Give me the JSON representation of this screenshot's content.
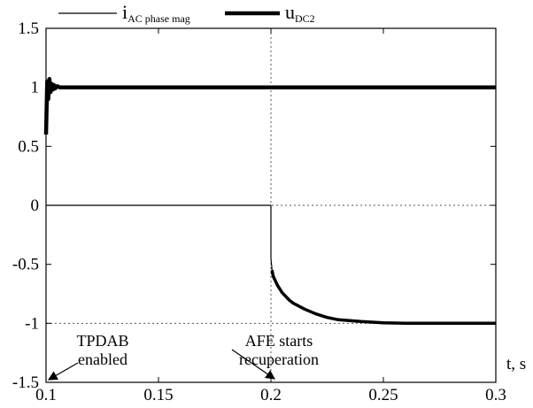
{
  "chart_data": {
    "type": "line",
    "xlim": [
      0.1,
      0.3
    ],
    "ylim": [
      -1.5,
      1.5
    ],
    "x_ticks": [
      "0.1",
      "0.15",
      "0.2",
      "0.25",
      "0.3"
    ],
    "y_ticks": [
      "1.5",
      "1",
      "0.5",
      "0",
      "-0.5",
      "-1",
      "-1.5"
    ],
    "xlabel": "t, s",
    "ylabel": "",
    "grid": "dotted lines at y = 0, y = -1 and x = 0.2",
    "legend": {
      "placement": "top",
      "entries": [
        {
          "main": "i",
          "sub": "AC phase mag"
        },
        {
          "main": "u",
          "sub": "DC2"
        }
      ]
    },
    "series": [
      {
        "name": "i_AC phase mag",
        "style": "thin",
        "color": "#000000",
        "x": [
          0.1,
          0.2,
          0.2,
          0.2005,
          0.201,
          0.203,
          0.205,
          0.208,
          0.21,
          0.215,
          0.22,
          0.225,
          0.23,
          0.24,
          0.25,
          0.26,
          0.28,
          0.3
        ],
        "y": [
          0.0,
          0.0,
          -0.45,
          -0.55,
          -0.6,
          -0.68,
          -0.74,
          -0.8,
          -0.83,
          -0.88,
          -0.92,
          -0.95,
          -0.97,
          -0.985,
          -0.995,
          -1.0,
          -1.0,
          -1.0
        ]
      },
      {
        "name": "u_DC2",
        "style": "thick",
        "color": "#000000",
        "x": [
          0.1,
          0.1005,
          0.101,
          0.1015,
          0.102,
          0.1025,
          0.103,
          0.1035,
          0.104,
          0.105,
          0.106,
          0.108,
          0.2,
          0.3
        ],
        "y": [
          0.6,
          1.05,
          0.9,
          1.07,
          0.96,
          1.03,
          0.98,
          1.02,
          0.99,
          1.01,
          1.0,
          1.0,
          1.0,
          1.0
        ]
      }
    ],
    "annotations": [
      {
        "lines": [
          "TPDAB",
          "enabled"
        ],
        "points_to_x": 0.1
      },
      {
        "lines": [
          "AFE starts",
          "recuperation"
        ],
        "points_to_x": 0.2
      }
    ]
  }
}
